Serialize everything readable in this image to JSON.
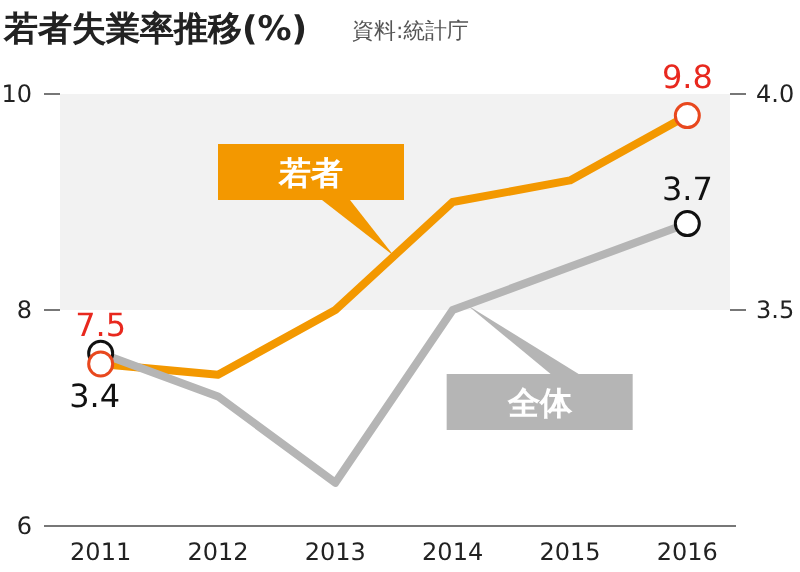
{
  "chart_data": {
    "type": "line",
    "title": "若者失業率推移(%)",
    "annotations": [
      "資料:統計庁"
    ],
    "categories": [
      "2011",
      "2012",
      "2013",
      "2014",
      "2015",
      "2016"
    ],
    "ylim": [
      6,
      10
    ],
    "yticks": [
      6,
      8,
      10
    ],
    "y2lim": [
      3.0,
      4.0
    ],
    "y2ticks": [
      3.5,
      {
        "value": 4.0,
        "label": "4.0"
      }
    ],
    "bands": [
      {
        "axis": "y",
        "from": 8,
        "to": 10,
        "color": "#f2f2f2"
      }
    ],
    "series": [
      {
        "name": "若者",
        "color": "#f39800",
        "values": [
          7.5,
          7.4,
          8.0,
          9.0,
          9.2,
          9.8
        ],
        "value_labels": [
          "7.5",
          null,
          null,
          null,
          null,
          "9.8"
        ]
      },
      {
        "name": "全体",
        "color": "#b5b5b5",
        "axis": "y2",
        "values": [
          3.4,
          3.3,
          3.1,
          3.5,
          3.6,
          3.7
        ],
        "value_labels": [
          "3.4",
          null,
          null,
          null,
          null,
          "3.7"
        ]
      }
    ]
  }
}
